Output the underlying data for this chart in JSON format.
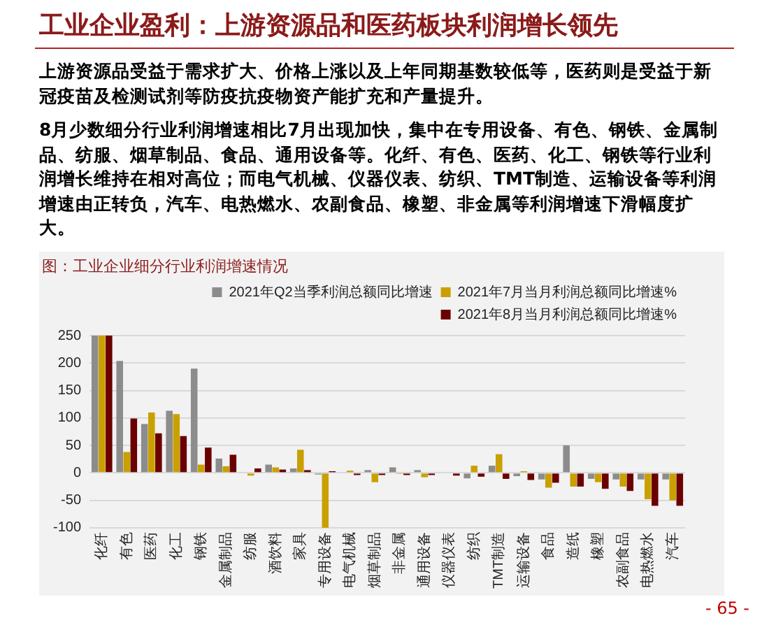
{
  "chart_data": {
    "type": "bar",
    "title": "工业企业盈利：上游资源品和医药板块利润增长领先",
    "subtitle": "图：工业企业细分行业利润增速情况",
    "annotations": [
      "上游资源品受益于需求扩大、价格上涨以及上年同期基数较低等，医药则是受益于新冠疫苗及检测试剂等防疫抗疫物资产能扩充和产量提升。",
      "8月少数细分行业利润增速相比7月出现加快，集中在专用设备、有色、钢铁、金属制品、纺服、烟草制品、食品、通用设备等。化纤、有色、医药、化工、钢铁等行业利润增长维持在相对高位；而电气机械、仪器仪表、纺织、TMT制造、运输设备等利润增速由正转负，汽车、电热燃水、农副食品、橡塑、非金属等利润增速下滑幅度扩大。",
      "- 65 -"
    ],
    "categories": [
      "化纤",
      "有色",
      "医药",
      "化工",
      "钢铁",
      "金属制品",
      "纺服",
      "酒饮料",
      "家具",
      "专用设备",
      "电气机械",
      "烟草制品",
      "非金属",
      "通用设备",
      "仪器仪表",
      "纺织",
      "TMT制造",
      "运输设备",
      "食品",
      "造纸",
      "橡塑",
      "农副食品",
      "电热燃水",
      "汽车"
    ],
    "series": [
      {
        "name": "2021年Q2当季利润总额同比增速",
        "color": "#8c8c8c",
        "values": [
          250,
          204,
          89,
          113,
          190,
          26,
          null,
          15,
          8,
          -3,
          null,
          5,
          10,
          5,
          null,
          -10,
          13,
          -6,
          -12,
          50,
          -11,
          -12,
          -12,
          -12
        ]
      },
      {
        "name": "2021年7月当月利润总额同比增速%",
        "color": "#c9a000",
        "values": [
          250,
          38,
          110,
          107,
          15,
          12,
          -5,
          10,
          42,
          -100,
          4,
          -17,
          -2,
          -8,
          null,
          13,
          34,
          3,
          -27,
          -25,
          -17,
          -25,
          -48,
          -50
        ]
      },
      {
        "name": "2021年8月当月利润总额同比增速%",
        "color": "#6b0000",
        "values": [
          250,
          99,
          72,
          67,
          46,
          33,
          8,
          6,
          5,
          3,
          -4,
          -4,
          -4,
          -4,
          -5,
          -7,
          -11,
          -13,
          -18,
          -25,
          -29,
          -33,
          -60,
          -60
        ]
      }
    ],
    "ylim": [
      -100,
      250
    ],
    "yticks": [
      -100,
      -50,
      0,
      50,
      100,
      150,
      200,
      250
    ],
    "grid": "y",
    "legend": "top right"
  }
}
